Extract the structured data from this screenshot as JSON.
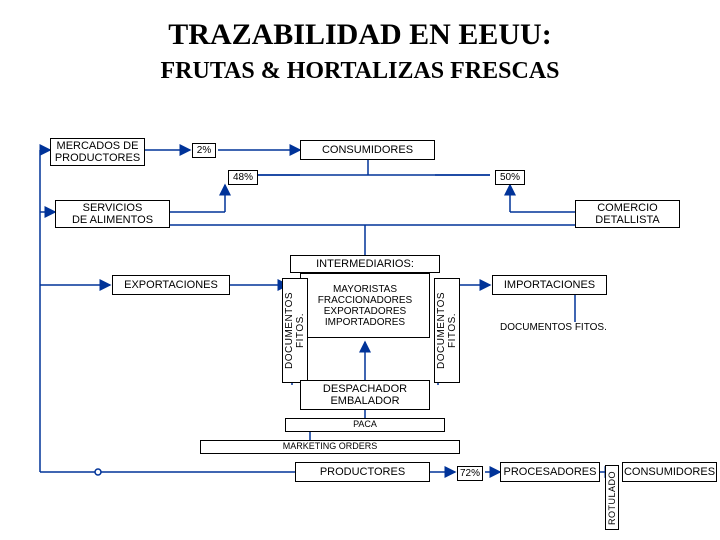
{
  "title_line1": "TRAZABILIDAD EN EEUU:",
  "title_line2": "FRUTAS & HORTALIZAS FRESCAS",
  "nodes": {
    "mercados": "MERCADOS DE\nPRODUCTORES",
    "consumidores_top": "CONSUMIDORES",
    "servicios": "SERVICIOS\nDE ALIMENTOS",
    "comercio": "COMERCIO\nDETALLISTA",
    "exportaciones": "EXPORTACIONES",
    "intermediarios_hdr": "INTERMEDIARIOS:",
    "intermediarios_body": "MAYORISTAS\nFRACCIONADORES\nEXPORTADORES\nIMPORTADORES",
    "importaciones": "IMPORTACIONES",
    "despachador": "DESPACHADOR\nEMBALADOR",
    "paca": "PACA",
    "marketing": "MARKETING ORDERS",
    "productores": "PRODUCTORES",
    "procesadores": "PROCESADORES",
    "consumidores_bottom": "CONSUMIDORES"
  },
  "pct": {
    "p2": "2%",
    "p48": "48%",
    "p50": "50%",
    "p72": "72%"
  },
  "labels": {
    "docfitos_v": "DOCUMENTOS FITOS.",
    "docfitos_h": "DOCUMENTOS FITOS.",
    "rotulado": "ROTULADO"
  },
  "colors": {
    "stroke": "#003399",
    "arrow": "#003399",
    "bg": "#ffffff",
    "text": "#000000"
  },
  "style": {
    "title1_fontsize": 30,
    "title2_fontsize": 24,
    "box_fontsize": 11,
    "pct_fontsize": 10,
    "line_width": 1.5
  }
}
